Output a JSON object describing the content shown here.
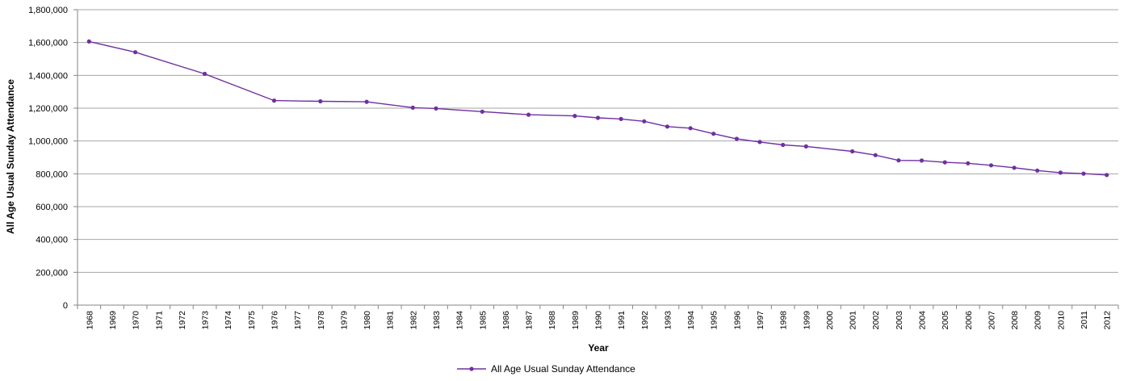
{
  "chart_data": {
    "type": "line",
    "title": "",
    "xlabel": "Year",
    "ylabel": "All Age Usual Sunday Attendance",
    "ylim": [
      0,
      1800000
    ],
    "y_ticks": [
      "0",
      "200,000",
      "400,000",
      "600,000",
      "800,000",
      "1,000,000",
      "1,200,000",
      "1,400,000",
      "1,600,000",
      "1,800,000"
    ],
    "categories": [
      "1968",
      "1969",
      "1970",
      "1971",
      "1972",
      "1973",
      "1974",
      "1975",
      "1976",
      "1977",
      "1978",
      "1979",
      "1980",
      "1981",
      "1982",
      "1983",
      "1984",
      "1985",
      "1986",
      "1987",
      "1988",
      "1989",
      "1990",
      "1991",
      "1992",
      "1993",
      "1994",
      "1995",
      "1996",
      "1997",
      "1998",
      "1999",
      "2000",
      "2001",
      "2002",
      "2003",
      "2004",
      "2005",
      "2006",
      "2007",
      "2008",
      "2009",
      "2010",
      "2011",
      "2012"
    ],
    "series": [
      {
        "name": "All Age Usual Sunday Attendance",
        "color": "#7030a0",
        "values": [
          1606000,
          null,
          1541000,
          null,
          null,
          1409000,
          null,
          null,
          1246000,
          null,
          1242000,
          null,
          1239000,
          null,
          1203000,
          1198000,
          null,
          1179000,
          null,
          1160000,
          null,
          1153000,
          1141000,
          1134000,
          1120000,
          1088000,
          1078000,
          1044000,
          1013000,
          994000,
          976000,
          967000,
          null,
          937000,
          914000,
          882000,
          881000,
          870000,
          864000,
          852000,
          837000,
          820000,
          807000,
          801000,
          793000
        ]
      }
    ],
    "grid": true,
    "legend_position": "bottom"
  }
}
